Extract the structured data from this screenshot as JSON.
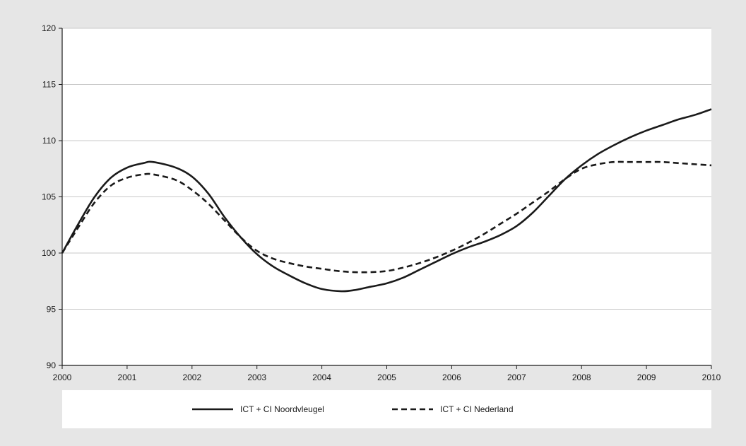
{
  "chart_data": {
    "type": "line",
    "title": "",
    "xlabel": "",
    "ylabel": "",
    "xlim": [
      2000,
      2010
    ],
    "ylim": [
      90,
      120
    ],
    "x_ticks": [
      "2000",
      "2001",
      "2002",
      "2003",
      "2004",
      "2005",
      "2006",
      "2007",
      "2008",
      "2009",
      "2010"
    ],
    "y_ticks": [
      "90",
      "95",
      "100",
      "105",
      "110",
      "115",
      "120"
    ],
    "grid": "horizontal",
    "legend_position": "bottom",
    "colors": {
      "line": "#1a1a1a",
      "grid": "#c8c8c8",
      "plot_bg": "#ffffff",
      "frame_bg": "#e6e6e6"
    },
    "series": [
      {
        "name": "ICT + CI Noordvleugel",
        "style": "solid",
        "x": [
          2000,
          2000.25,
          2000.5,
          2000.75,
          2001,
          2001.25,
          2001.4,
          2001.75,
          2002,
          2002.25,
          2002.5,
          2002.75,
          2003,
          2003.25,
          2003.5,
          2003.75,
          2004,
          2004.3,
          2004.5,
          2004.75,
          2005,
          2005.25,
          2005.5,
          2005.75,
          2006,
          2006.25,
          2006.5,
          2006.75,
          2007,
          2007.25,
          2007.5,
          2007.75,
          2008,
          2008.25,
          2008.5,
          2008.75,
          2009,
          2009.25,
          2009.5,
          2009.75,
          2010
        ],
        "y": [
          100,
          102.6,
          105.0,
          106.7,
          107.6,
          108.0,
          108.1,
          107.6,
          106.8,
          105.3,
          103.2,
          101.4,
          99.9,
          98.8,
          98.0,
          97.3,
          96.8,
          96.6,
          96.7,
          97.0,
          97.3,
          97.8,
          98.5,
          99.2,
          99.9,
          100.5,
          101.0,
          101.6,
          102.4,
          103.6,
          105.1,
          106.6,
          107.8,
          108.8,
          109.6,
          110.3,
          110.9,
          111.4,
          111.9,
          112.3,
          112.8
        ]
      },
      {
        "name": "ICT + CI Nederland",
        "style": "dashed",
        "x": [
          2000,
          2000.25,
          2000.5,
          2000.75,
          2001,
          2001.25,
          2001.4,
          2001.75,
          2002,
          2002.25,
          2002.5,
          2002.75,
          2003,
          2003.25,
          2003.5,
          2003.75,
          2004,
          2004.25,
          2004.5,
          2004.75,
          2005,
          2005.25,
          2005.5,
          2005.75,
          2006,
          2006.25,
          2006.5,
          2006.75,
          2007,
          2007.25,
          2007.5,
          2007.75,
          2008,
          2008.25,
          2008.5,
          2008.75,
          2009,
          2009.25,
          2009.5,
          2009.75,
          2010
        ],
        "y": [
          100,
          102.3,
          104.5,
          106.0,
          106.7,
          107.0,
          107.0,
          106.5,
          105.6,
          104.4,
          102.9,
          101.4,
          100.2,
          99.5,
          99.1,
          98.8,
          98.6,
          98.4,
          98.3,
          98.3,
          98.4,
          98.7,
          99.1,
          99.6,
          100.2,
          100.9,
          101.7,
          102.6,
          103.5,
          104.5,
          105.5,
          106.6,
          107.5,
          107.9,
          108.1,
          108.1,
          108.1,
          108.1,
          108.0,
          107.9,
          107.8
        ]
      }
    ]
  }
}
